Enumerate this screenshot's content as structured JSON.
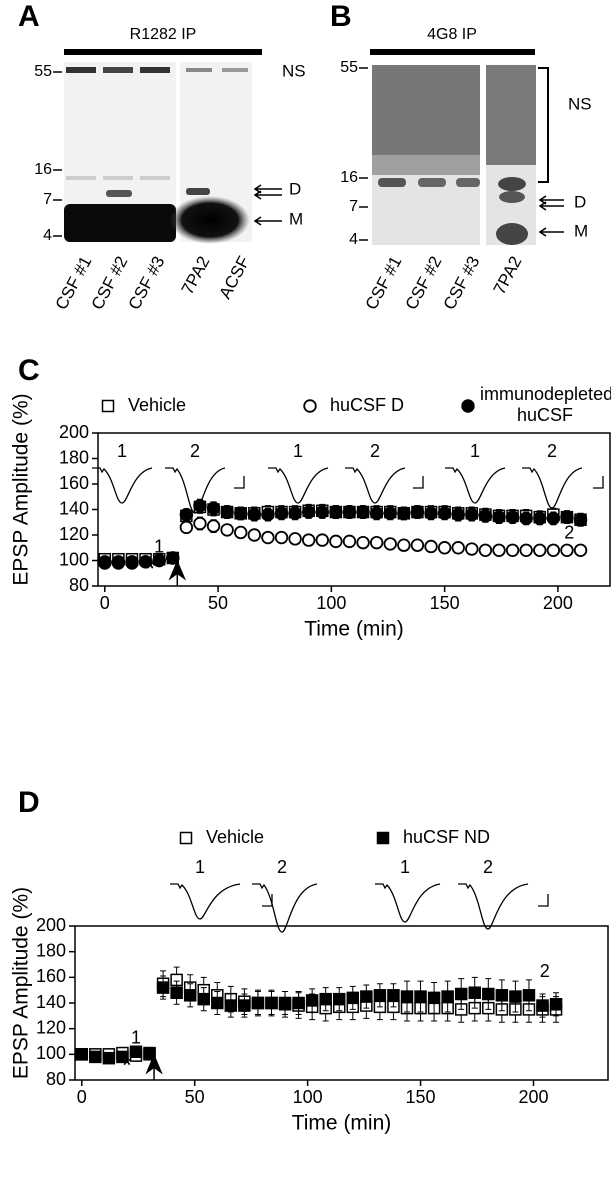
{
  "panels": [
    {
      "letter": "A",
      "antibody": "R1282 IP",
      "markers": [
        "55",
        "16",
        "7",
        "4"
      ],
      "bands": [
        "NS",
        "D",
        "M"
      ],
      "lanes": [
        "CSF #1",
        "CSF #2",
        "CSF #3",
        "7PA2",
        "ACSF"
      ]
    },
    {
      "letter": "B",
      "antibody": "4G8 IP",
      "markers": [
        "55",
        "16",
        "7",
        "4"
      ],
      "bands": [
        "NS",
        "D",
        "M"
      ],
      "lanes": [
        "CSF #1",
        "CSF #2",
        "CSF #3",
        "7PA2"
      ]
    }
  ],
  "chart_data": [
    {
      "type": "scatter",
      "panel": "C",
      "ylabel": "EPSP Amplitude (%)",
      "xlabel": "Time (min)",
      "xlim": [
        -3,
        223
      ],
      "ylim": [
        80,
        200
      ],
      "xticks": [
        0,
        50,
        100,
        150,
        200
      ],
      "yticks": [
        80,
        100,
        120,
        140,
        160,
        180,
        200
      ],
      "trace_labels": [
        "1",
        "2",
        "1",
        "2",
        "1",
        "2"
      ],
      "annotations": [
        "1",
        "*",
        "2"
      ],
      "x": [
        0,
        6,
        12,
        18,
        24,
        30,
        36,
        42,
        48,
        54,
        60,
        66,
        72,
        78,
        84,
        90,
        96,
        102,
        108,
        114,
        120,
        126,
        132,
        138,
        144,
        150,
        156,
        162,
        168,
        174,
        180,
        186,
        192,
        198,
        204,
        210
      ],
      "series": [
        {
          "name": "Vehicle",
          "marker": "square",
          "filled": false,
          "color": "#000000",
          "values": [
            101,
            101,
            101,
            101,
            101,
            102,
            135,
            142,
            140,
            138,
            137,
            137,
            138,
            138,
            138,
            139,
            139,
            138,
            138,
            138,
            138,
            138,
            137,
            138,
            138,
            138,
            137,
            137,
            136,
            135,
            135,
            135,
            134,
            136,
            134,
            132
          ],
          "errors": [
            2,
            2,
            2,
            2,
            2,
            2,
            4,
            5,
            5,
            5,
            5,
            5,
            5,
            5,
            5,
            5,
            5,
            5,
            5,
            5,
            5,
            5,
            5,
            5,
            5,
            5,
            5,
            5,
            5,
            5,
            5,
            5,
            5,
            5,
            5,
            5
          ]
        },
        {
          "name": "huCSF D",
          "marker": "circle",
          "filled": false,
          "color": "#000000",
          "values": [
            99,
            99,
            99,
            99,
            100,
            102,
            126,
            129,
            127,
            124,
            122,
            120,
            118,
            118,
            117,
            116,
            116,
            115,
            115,
            114,
            114,
            113,
            112,
            112,
            111,
            110,
            110,
            109,
            108,
            108,
            108,
            108,
            108,
            108,
            108,
            108
          ],
          "errors": [
            2,
            2,
            2,
            2,
            2,
            2,
            4,
            5,
            5,
            4,
            4,
            4,
            4,
            4,
            4,
            4,
            4,
            4,
            4,
            4,
            4,
            4,
            4,
            4,
            4,
            4,
            4,
            4,
            4,
            4,
            4,
            4,
            4,
            4,
            4,
            4
          ]
        },
        {
          "name": "immunodepleted huCSF",
          "marker": "circle",
          "filled": true,
          "color": "#000000",
          "values": [
            98,
            98,
            98,
            99,
            100,
            102,
            136,
            143,
            141,
            138,
            137,
            136,
            136,
            137,
            137,
            138,
            138,
            138,
            138,
            138,
            137,
            137,
            137,
            138,
            137,
            137,
            136,
            136,
            135,
            134,
            134,
            133,
            133,
            133,
            134,
            132
          ],
          "errors": [
            2,
            2,
            2,
            2,
            2,
            2,
            4,
            5,
            5,
            5,
            5,
            5,
            5,
            5,
            5,
            5,
            5,
            5,
            5,
            5,
            5,
            5,
            5,
            5,
            5,
            5,
            5,
            5,
            5,
            5,
            5,
            5,
            5,
            5,
            5,
            5
          ]
        }
      ]
    },
    {
      "type": "scatter",
      "panel": "D",
      "ylabel": "EPSP Amplitude (%)",
      "xlabel": "Time (min)",
      "xlim": [
        -3,
        233
      ],
      "ylim": [
        80,
        200
      ],
      "xticks": [
        0,
        50,
        100,
        150,
        200
      ],
      "yticks": [
        80,
        100,
        120,
        140,
        160,
        180,
        200
      ],
      "trace_labels": [
        "1",
        "2",
        "1",
        "2"
      ],
      "annotations": [
        "1",
        "*",
        "2"
      ],
      "x": [
        0,
        6,
        12,
        18,
        24,
        30,
        36,
        42,
        48,
        54,
        60,
        66,
        72,
        78,
        84,
        90,
        96,
        102,
        108,
        114,
        120,
        126,
        132,
        138,
        144,
        150,
        156,
        162,
        168,
        174,
        180,
        186,
        192,
        198,
        204,
        210
      ],
      "series": [
        {
          "name": "Vehicle",
          "marker": "square",
          "filled": false,
          "color": "#000000",
          "values": [
            100,
            100,
            100,
            101,
            99,
            100,
            155,
            158,
            152,
            150,
            146,
            143,
            141,
            140,
            140,
            139,
            138,
            137,
            136,
            137,
            137,
            138,
            137,
            137,
            136,
            136,
            136,
            136,
            135,
            136,
            136,
            135,
            135,
            135,
            135,
            135
          ],
          "errors": [
            2,
            2,
            2,
            2,
            2,
            2,
            10,
            10,
            10,
            10,
            10,
            10,
            10,
            10,
            10,
            10,
            10,
            10,
            10,
            10,
            10,
            10,
            10,
            10,
            10,
            10,
            10,
            10,
            10,
            10,
            10,
            10,
            10,
            10,
            10,
            10
          ]
        },
        {
          "name": "huCSF ND",
          "marker": "square",
          "filled": true,
          "color": "#000000",
          "values": [
            100,
            98,
            97,
            98,
            102,
            101,
            152,
            148,
            146,
            143,
            140,
            138,
            138,
            140,
            140,
            140,
            140,
            142,
            143,
            143,
            144,
            145,
            146,
            146,
            145,
            145,
            144,
            145,
            147,
            148,
            147,
            146,
            145,
            146,
            138,
            139
          ],
          "errors": [
            2,
            2,
            2,
            2,
            2,
            2,
            9,
            9,
            9,
            9,
            9,
            9,
            9,
            9,
            9,
            9,
            9,
            9,
            9,
            9,
            9,
            9,
            9,
            9,
            12,
            12,
            12,
            12,
            12,
            12,
            12,
            12,
            12,
            12,
            9,
            9
          ]
        }
      ]
    }
  ]
}
